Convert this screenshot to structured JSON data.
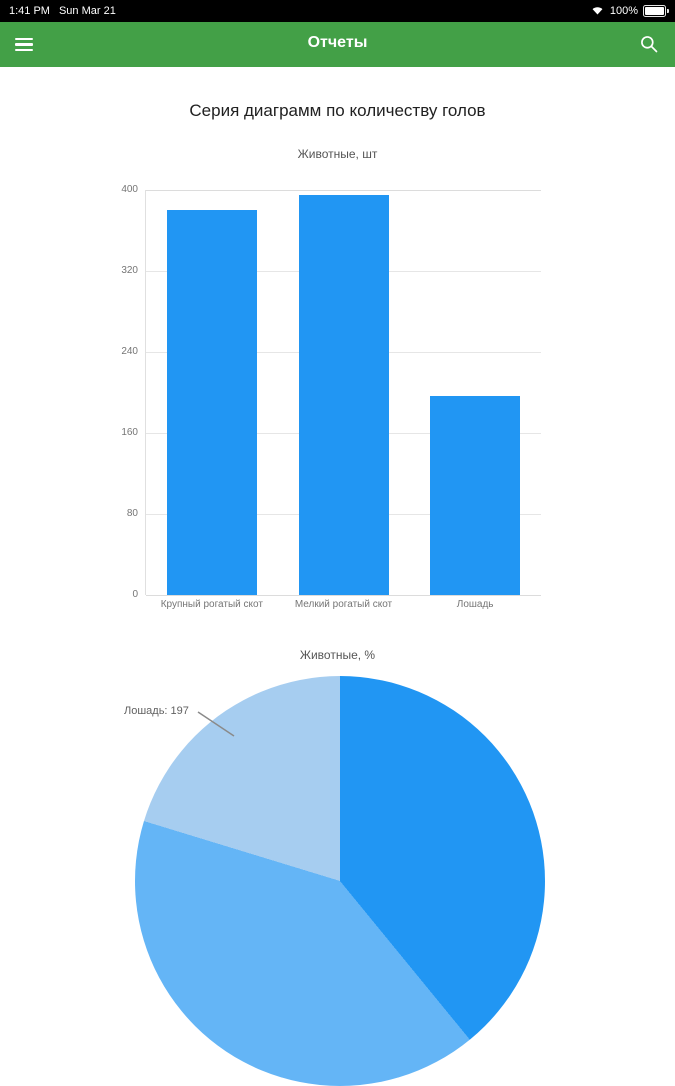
{
  "status_bar": {
    "time": "1:41 PM",
    "date": "Sun Mar 21",
    "battery_percent": "100%"
  },
  "app_bar": {
    "title": "Отчеты"
  },
  "page": {
    "title": "Серия диаграмм по количеству голов"
  },
  "icons": {
    "menu": "hamburger-menu",
    "search": "magnifier",
    "wifi": "wifi-signal",
    "battery": "battery-full"
  },
  "colors": {
    "status_bar": "#000000",
    "app_bar": "#43A047",
    "bar_fill": "#2196F3"
  },
  "chart_data": [
    {
      "type": "bar",
      "title": "Животные, шт",
      "categories": [
        "Крупный рогатый скот",
        "Мелкий рогатый скот",
        "Лошадь"
      ],
      "values": [
        380,
        395,
        197
      ],
      "xlabel": "",
      "ylabel": "",
      "ylim": [
        0,
        400
      ],
      "yticks": [
        0,
        80,
        160,
        240,
        320,
        400
      ],
      "grid": true,
      "bar_color": "#2196F3"
    },
    {
      "type": "pie",
      "title": "Животные, %",
      "labels": [
        "Крупный рогатый скот",
        "Мелкий рогатый скот",
        "Лошадь"
      ],
      "values": [
        380,
        395,
        197
      ],
      "colors": [
        "#2196F3",
        "#64B5F6",
        "#A6CDF0"
      ],
      "start_angle_deg": 0,
      "direction": "clockwise",
      "annotation": "Лошадь: 197"
    }
  ]
}
